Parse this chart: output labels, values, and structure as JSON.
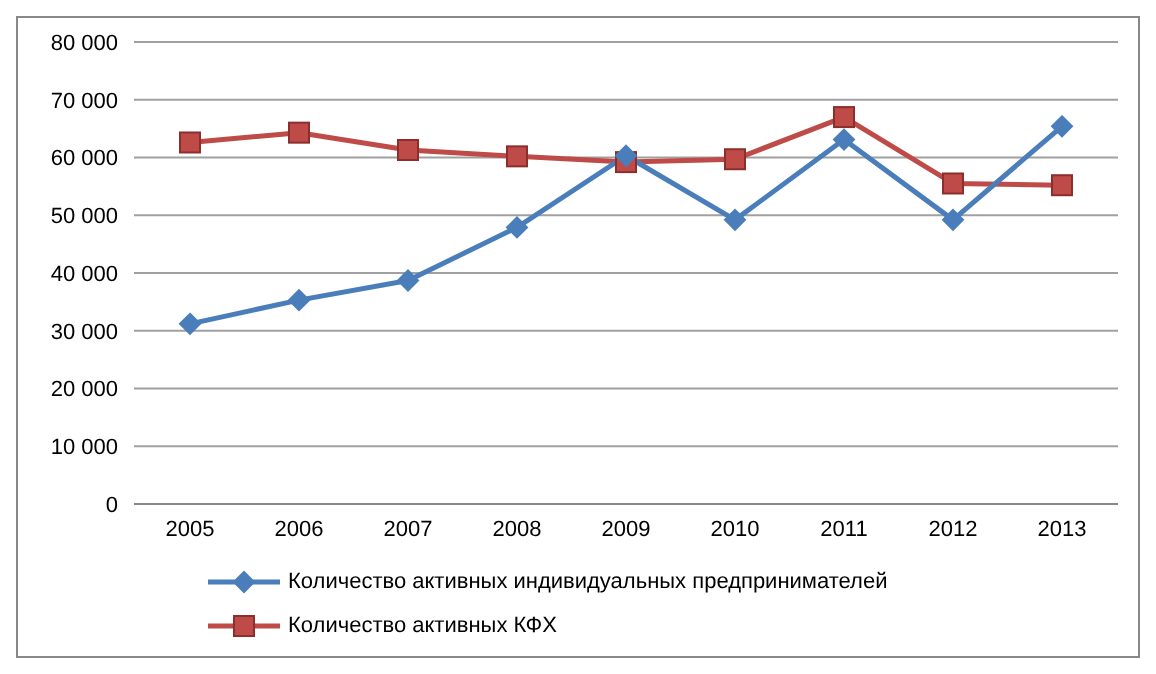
{
  "chart_data": {
    "type": "line",
    "categories": [
      "2005",
      "2006",
      "2007",
      "2008",
      "2009",
      "2010",
      "2011",
      "2012",
      "2013"
    ],
    "series": [
      {
        "name": "Количество активных индивидуальных предпринимателей",
        "color": "#4a7ebb",
        "marker": "diamond",
        "values": [
          31200,
          35300,
          38700,
          47900,
          60300,
          49200,
          63100,
          49200,
          65400
        ]
      },
      {
        "name": "Количество активных КФХ",
        "color": "#be4b48",
        "marker": "square",
        "values": [
          62600,
          64300,
          61300,
          60200,
          59200,
          59700,
          67000,
          55500,
          55200
        ]
      }
    ],
    "ylim": [
      0,
      80000
    ],
    "yticks": [
      0,
      {
        "value": 10000,
        "label": "10 000"
      },
      {
        "value": 20000,
        "label": "20 000"
      },
      {
        "value": 30000,
        "label": "30 000"
      },
      {
        "value": 40000,
        "label": "40 000"
      },
      {
        "value": 50000,
        "label": "50 000"
      },
      {
        "value": 60000,
        "label": "60 000"
      },
      {
        "value": 70000,
        "label": "70 000"
      },
      {
        "value": 80000,
        "label": "80 000"
      }
    ],
    "grid": "y",
    "legend": "bottom",
    "line_style": "solid"
  }
}
